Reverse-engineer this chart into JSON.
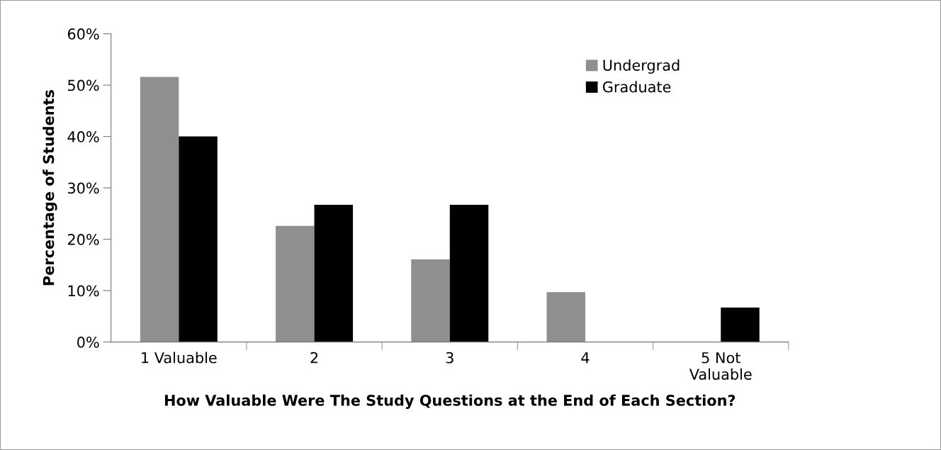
{
  "chart_data": {
    "type": "bar",
    "xlabel": "How Valuable Were The Study Questions at the End of Each Section?",
    "ylabel": "Percentage of Students",
    "categories": [
      "1 Valuable",
      "2",
      "3",
      "4",
      "5 Not\nValuable"
    ],
    "series": [
      {
        "name": "Undergrad",
        "color": "#8f8f8f",
        "values": [
          51.6,
          22.6,
          16.1,
          9.7,
          0
        ]
      },
      {
        "name": "Graduate",
        "color": "#000000",
        "values": [
          40,
          26.7,
          26.7,
          0,
          6.7
        ]
      }
    ],
    "ylim": [
      0,
      60
    ],
    "yticks": [
      {
        "value": 0,
        "label": "0%"
      },
      {
        "value": 10,
        "label": "10%"
      },
      {
        "value": 20,
        "label": "20%"
      },
      {
        "value": 30,
        "label": "30%"
      },
      {
        "value": 40,
        "label": "40%"
      },
      {
        "value": 50,
        "label": "50%"
      },
      {
        "value": 60,
        "label": "60%"
      }
    ],
    "grid": false,
    "legend": "top right"
  }
}
